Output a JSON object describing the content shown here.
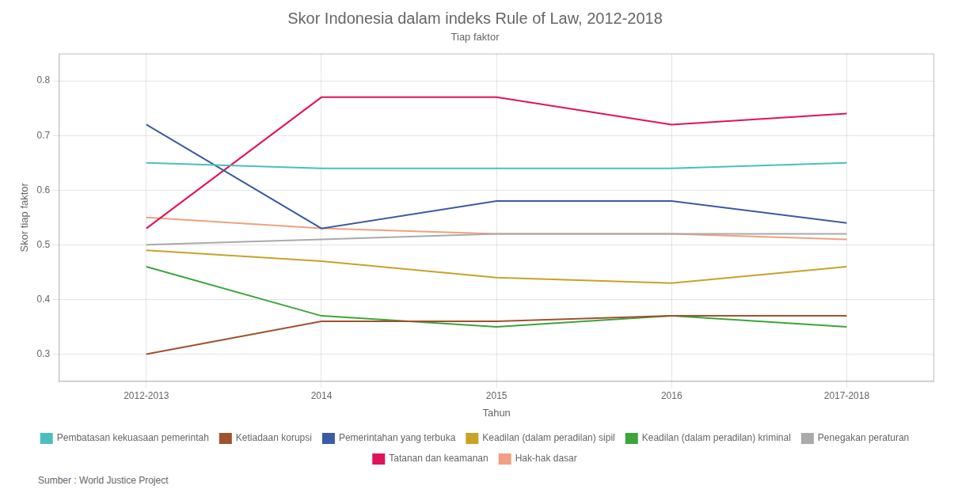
{
  "chart_data": {
    "type": "line",
    "title": "Skor Indonesia dalam indeks Rule of Law, 2012-2018",
    "subtitle": "Tiap faktor",
    "x_label": "Tahun",
    "y_label": "Skor tiap faktor",
    "source": "Sumber : World Justice Project",
    "categories": [
      "2012-2013",
      "2014",
      "2015",
      "2016",
      "2017-2018"
    ],
    "series": [
      {
        "name": "Pembatasan kekuasaan pemerintah",
        "color": "#4BBFBF",
        "values": [
          0.65,
          0.64,
          0.64,
          0.64,
          0.65
        ]
      },
      {
        "name": "Ketiadaan korupsi",
        "color": "#A0522D",
        "values": [
          0.3,
          0.36,
          0.36,
          0.37,
          0.37
        ]
      },
      {
        "name": "Pemerintahan yang terbuka",
        "color": "#3B5BA5",
        "values": [
          0.72,
          0.53,
          0.58,
          0.58,
          0.54
        ]
      },
      {
        "name": "Keadilan (dalam peradilan) sipil",
        "color": "#C9A227",
        "values": [
          0.49,
          0.47,
          0.44,
          0.43,
          0.46
        ]
      },
      {
        "name": "Keadilan (dalam peradilan) kriminal",
        "color": "#3BA53B",
        "values": [
          0.46,
          0.37,
          0.35,
          0.37,
          0.35
        ]
      },
      {
        "name": "Penegakan peraturan",
        "color": "#AAAAAA",
        "values": [
          0.5,
          0.51,
          0.52,
          0.52,
          0.52
        ]
      },
      {
        "name": "Tatanan dan keamanan",
        "color": "#E0135A",
        "values": [
          0.53,
          0.77,
          0.77,
          0.72,
          0.74
        ]
      },
      {
        "name": "Hak-hak dasar",
        "color": "#F0A080",
        "values": [
          0.55,
          0.53,
          0.52,
          0.52,
          0.51
        ]
      }
    ],
    "ylim": [
      0.25,
      0.85
    ],
    "yticks": [
      0.3,
      0.4,
      0.5,
      0.6,
      0.7,
      0.8
    ],
    "grid": true,
    "legend": "bottom"
  }
}
